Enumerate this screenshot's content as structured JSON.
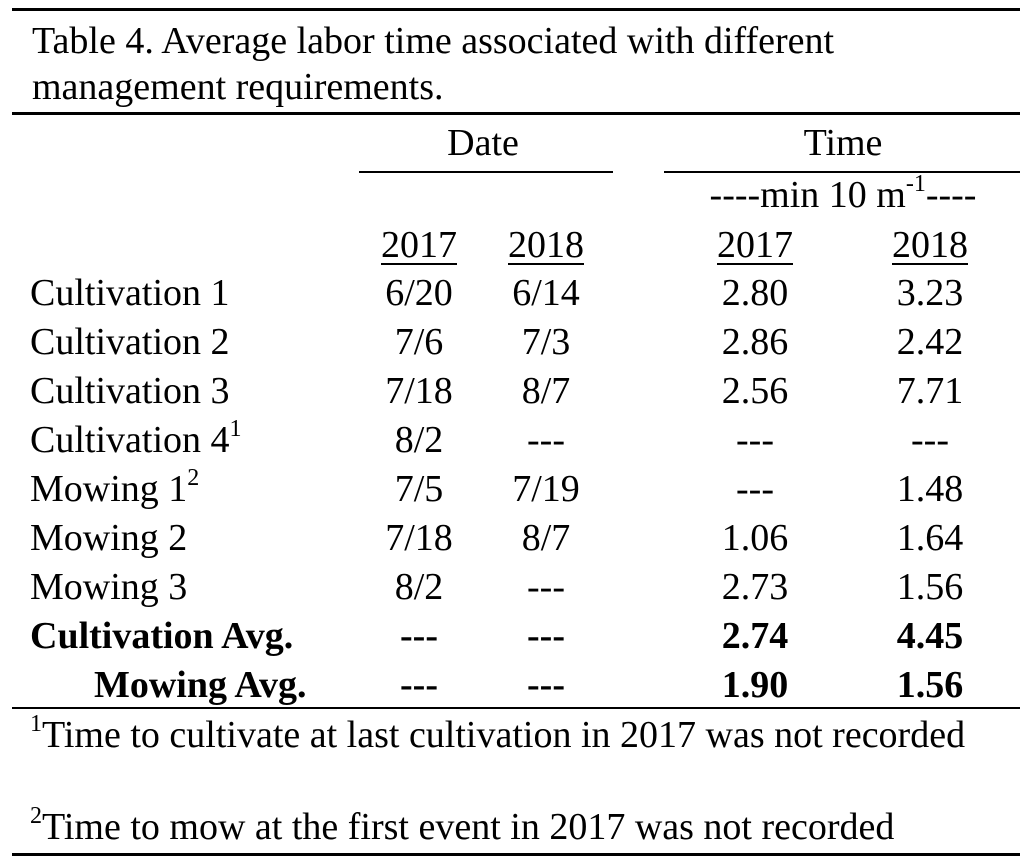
{
  "caption": "Table 4. Average labor time associated with different management requirements.",
  "headers": {
    "date_group": "Date",
    "time_group": "Time",
    "time_unit": "----min 10 m",
    "time_unit_sup": "-1",
    "time_unit_tail": "----",
    "years": [
      "2017",
      "2018",
      "2017",
      "2018"
    ]
  },
  "rows": [
    {
      "label": "Cultivation 1",
      "sup": "",
      "d2017": "6/20",
      "d2018": "6/14",
      "t2017": "2.80",
      "t2018": "3.23",
      "bold": false
    },
    {
      "label": "Cultivation 2",
      "sup": "",
      "d2017": "7/6",
      "d2018": "7/3",
      "t2017": "2.86",
      "t2018": "2.42",
      "bold": false
    },
    {
      "label": "Cultivation 3",
      "sup": "",
      "d2017": "7/18",
      "d2018": "8/7",
      "t2017": "2.56",
      "t2018": "7.71",
      "bold": false
    },
    {
      "label": "Cultivation 4",
      "sup": "1",
      "d2017": "8/2",
      "d2018": "---",
      "t2017": "---",
      "t2018": "---",
      "bold": false
    },
    {
      "label": "Mowing 1",
      "sup": "2",
      "d2017": "7/5",
      "d2018": "7/19",
      "t2017": "---",
      "t2018": "1.48",
      "bold": false
    },
    {
      "label": "Mowing 2",
      "sup": "",
      "d2017": "7/18",
      "d2018": "8/7",
      "t2017": "1.06",
      "t2018": "1.64",
      "bold": false
    },
    {
      "label": "Mowing 3",
      "sup": "",
      "d2017": "8/2",
      "d2018": "---",
      "t2017": "2.73",
      "t2018": "1.56",
      "bold": false
    },
    {
      "label": "Cultivation Avg.",
      "sup": "",
      "d2017": "---",
      "d2018": "---",
      "t2017": "2.74",
      "t2018": "4.45",
      "bold": true
    },
    {
      "label": "Mowing Avg.",
      "sup": "",
      "d2017": "---",
      "d2018": "---",
      "t2017": "1.90",
      "t2018": "1.56",
      "bold": true
    }
  ],
  "footnotes": [
    {
      "mark": "1",
      "text": "Time to cultivate at last cultivation in 2017 was not recorded"
    },
    {
      "mark": "2",
      "text": "Time to mow at the first event in 2017 was not recorded"
    }
  ]
}
